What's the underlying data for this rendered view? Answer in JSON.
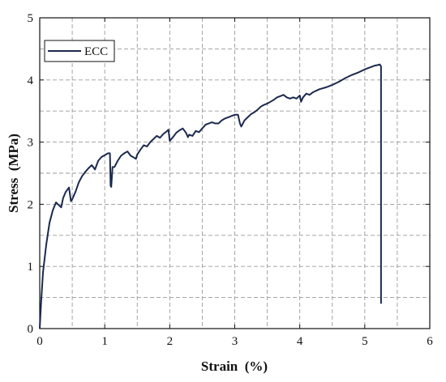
{
  "chart_data": {
    "type": "line",
    "title": "",
    "xlabel": "Strain  (%)",
    "ylabel": "Stress  (MPa)",
    "xlim": [
      0,
      6
    ],
    "ylim": [
      0,
      5
    ],
    "xticks": [
      0,
      1,
      2,
      3,
      4,
      5,
      6
    ],
    "yticks": [
      0,
      1,
      2,
      3,
      4,
      5
    ],
    "x_minor_step": 0.5,
    "y_minor_step": 0.5,
    "grid": true,
    "legend_position": "top-left",
    "colors": {
      "line": "#1b2a4e",
      "grid": "#9a9a9a",
      "axis": "#111111"
    },
    "series": [
      {
        "name": "ECC",
        "x": [
          0,
          0.02,
          0.05,
          0.1,
          0.15,
          0.2,
          0.25,
          0.3,
          0.33,
          0.36,
          0.4,
          0.45,
          0.48,
          0.5,
          0.55,
          0.6,
          0.65,
          0.7,
          0.75,
          0.8,
          0.85,
          0.9,
          0.95,
          1.0,
          1.05,
          1.08,
          1.09,
          1.1,
          1.12,
          1.15,
          1.2,
          1.25,
          1.3,
          1.35,
          1.4,
          1.45,
          1.48,
          1.5,
          1.55,
          1.6,
          1.65,
          1.7,
          1.75,
          1.8,
          1.85,
          1.9,
          1.95,
          1.98,
          2.0,
          2.05,
          2.1,
          2.15,
          2.2,
          2.25,
          2.28,
          2.3,
          2.35,
          2.4,
          2.45,
          2.5,
          2.55,
          2.6,
          2.65,
          2.7,
          2.75,
          2.8,
          2.85,
          2.9,
          2.95,
          3.0,
          3.05,
          3.08,
          3.1,
          3.15,
          3.2,
          3.25,
          3.3,
          3.35,
          3.4,
          3.45,
          3.5,
          3.55,
          3.6,
          3.65,
          3.7,
          3.75,
          3.8,
          3.85,
          3.9,
          3.95,
          4.0,
          4.02,
          4.05,
          4.1,
          4.15,
          4.2,
          4.3,
          4.4,
          4.5,
          4.6,
          4.7,
          4.8,
          4.9,
          5.0,
          5.1,
          5.15,
          5.2,
          5.23,
          5.25,
          5.25
        ],
        "y": [
          0,
          0.4,
          0.9,
          1.35,
          1.7,
          1.9,
          2.03,
          1.98,
          1.95,
          2.1,
          2.2,
          2.27,
          2.05,
          2.08,
          2.2,
          2.35,
          2.45,
          2.52,
          2.58,
          2.63,
          2.56,
          2.7,
          2.76,
          2.79,
          2.82,
          2.82,
          2.3,
          2.28,
          2.6,
          2.6,
          2.7,
          2.78,
          2.82,
          2.85,
          2.78,
          2.75,
          2.73,
          2.8,
          2.88,
          2.95,
          2.93,
          3.0,
          3.05,
          3.1,
          3.07,
          3.13,
          3.17,
          3.2,
          3.02,
          3.08,
          3.15,
          3.19,
          3.22,
          3.15,
          3.08,
          3.12,
          3.1,
          3.18,
          3.16,
          3.22,
          3.28,
          3.3,
          3.32,
          3.3,
          3.3,
          3.35,
          3.38,
          3.4,
          3.42,
          3.44,
          3.44,
          3.3,
          3.25,
          3.35,
          3.4,
          3.45,
          3.48,
          3.52,
          3.57,
          3.6,
          3.62,
          3.65,
          3.68,
          3.72,
          3.74,
          3.76,
          3.72,
          3.7,
          3.72,
          3.7,
          3.75,
          3.65,
          3.72,
          3.78,
          3.76,
          3.8,
          3.85,
          3.88,
          3.92,
          3.97,
          4.03,
          4.08,
          4.12,
          4.17,
          4.21,
          4.23,
          4.24,
          4.25,
          4.22,
          0.4
        ]
      }
    ]
  }
}
